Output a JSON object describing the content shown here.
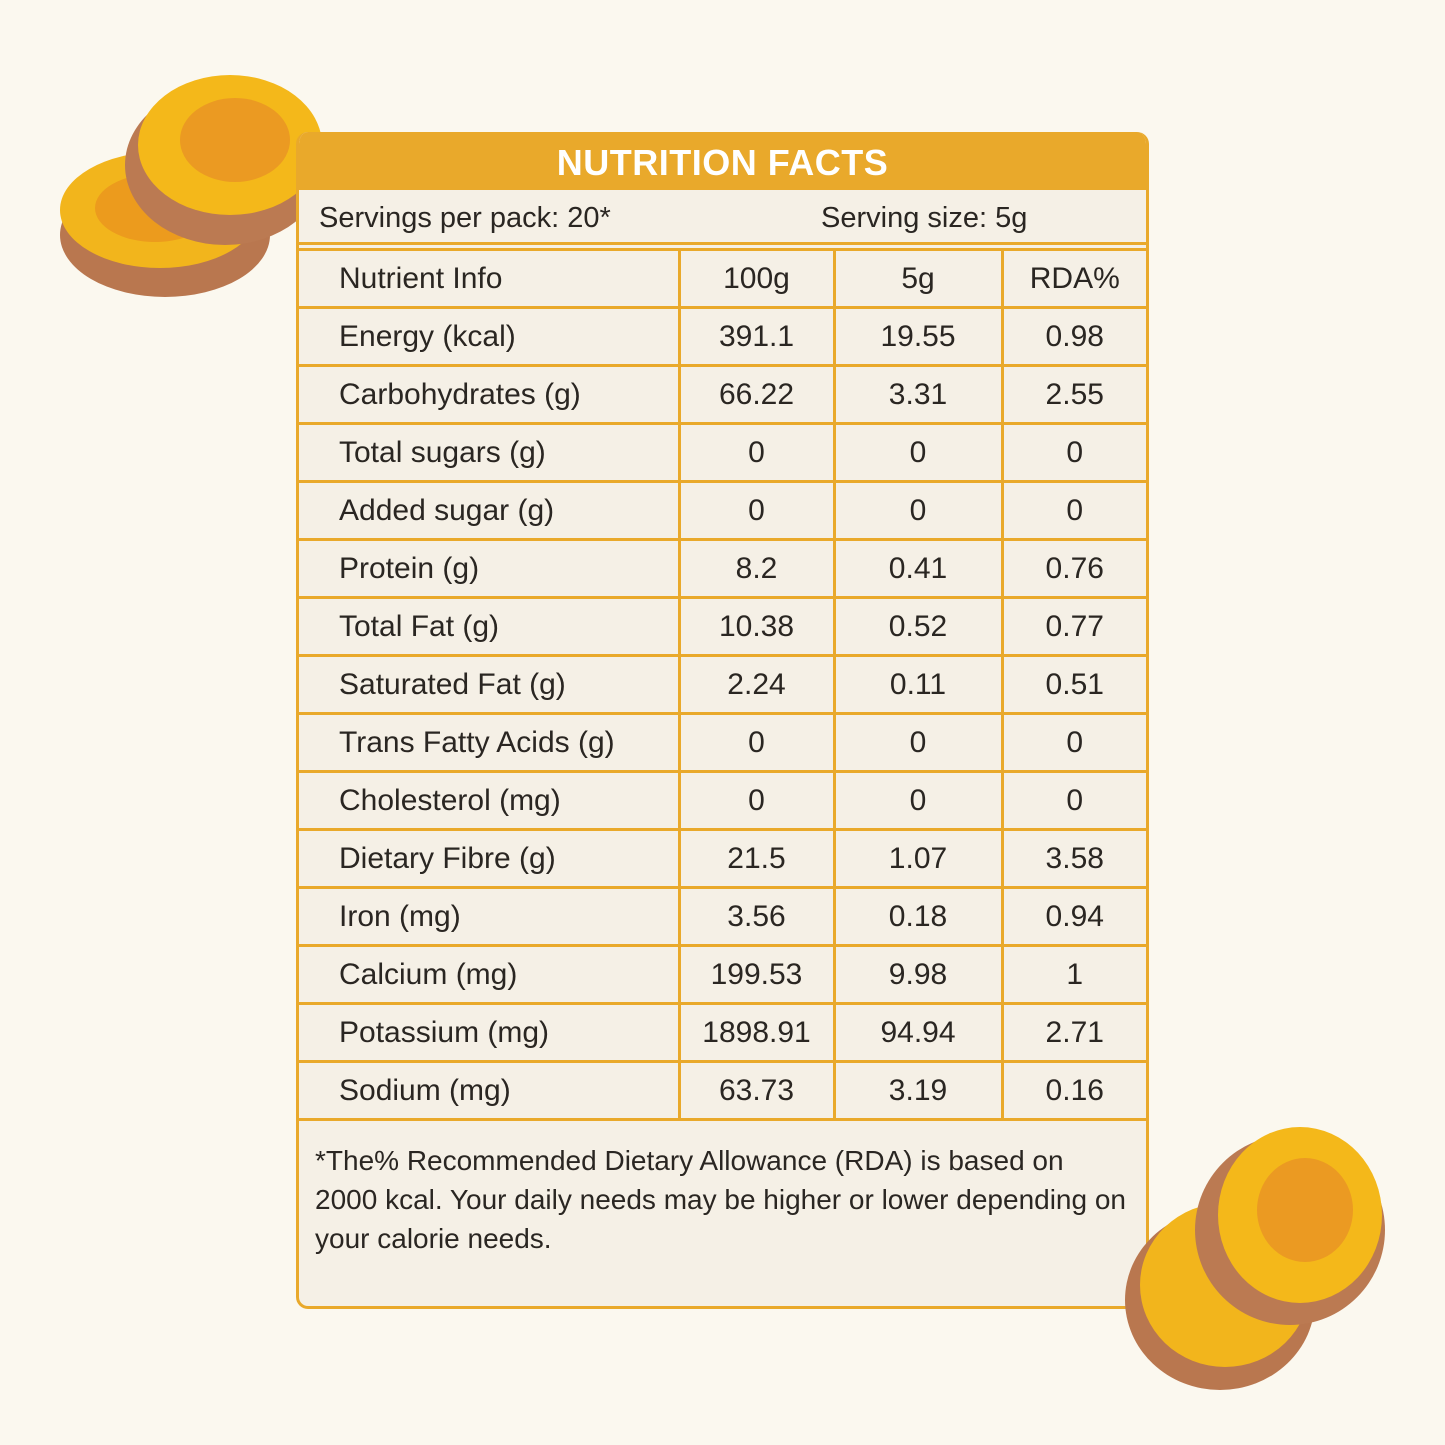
{
  "title": "NUTRITION FACTS",
  "servings_per_pack": "Servings per pack: 20*",
  "serving_size": "Serving size: 5g",
  "table": {
    "header": [
      "Nutrient Info",
      "100g",
      "5g",
      "RDA%"
    ],
    "rows": [
      [
        "Energy (kcal)",
        "391.1",
        "19.55",
        "0.98"
      ],
      [
        "Carbohydrates (g)",
        "66.22",
        "3.31",
        "2.55"
      ],
      [
        "Total sugars (g)",
        "0",
        "0",
        "0"
      ],
      [
        "Added sugar (g)",
        "0",
        "0",
        "0"
      ],
      [
        "Protein (g)",
        "8.2",
        "0.41",
        "0.76"
      ],
      [
        "Total Fat (g)",
        "10.38",
        "0.52",
        "0.77"
      ],
      [
        "Saturated Fat (g)",
        "2.24",
        "0.11",
        "0.51"
      ],
      [
        "Trans Fatty Acids (g)",
        "0",
        "0",
        "0"
      ],
      [
        "Cholesterol (mg)",
        "0",
        "0",
        "0"
      ],
      [
        "Dietary Fibre (g)",
        "21.5",
        "1.07",
        "3.58"
      ],
      [
        "Iron (mg)",
        "3.56",
        "0.18",
        "0.94"
      ],
      [
        "Calcium (mg)",
        "199.53",
        "9.98",
        "1"
      ],
      [
        "Potassium (mg)",
        "1898.91",
        "94.94",
        "2.71"
      ],
      [
        "Sodium (mg)",
        "63.73",
        "3.19",
        "0.16"
      ]
    ]
  },
  "footnote": "*The% Recommended Dietary Allowance (RDA) is based on 2000 kcal. Your daily needs may be higher or lower depending on your calorie needs."
}
